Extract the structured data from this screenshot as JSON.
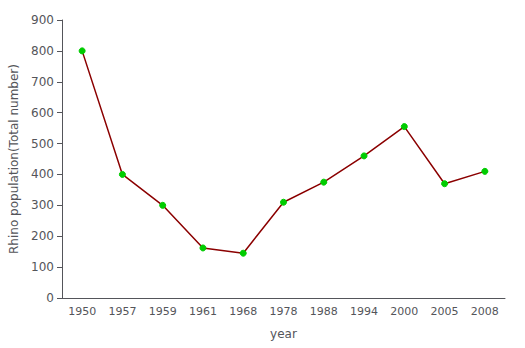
{
  "chart_data": {
    "type": "line",
    "xlabel": "year",
    "ylabel": "Rhino population(Total number)",
    "categories": [
      "1950",
      "1957",
      "1959",
      "1961",
      "1968",
      "1978",
      "1988",
      "1994",
      "2000",
      "2005",
      "2008"
    ],
    "values": [
      800,
      400,
      300,
      162,
      145,
      310,
      375,
      460,
      555,
      370,
      410
    ],
    "color": "#8B0000",
    "colors": [
      "#00CC00",
      "#00CC00",
      "#00CC00",
      "#00CC00",
      "#00CC00",
      "#00CC00",
      "#00CC00",
      "#00CC00",
      "#00CC00",
      "#00CC00",
      "#00CC00"
    ],
    "marker": "circle",
    "ylim": [
      0,
      900
    ],
    "yticks": [
      0,
      100,
      200,
      300,
      400,
      500,
      600,
      700,
      800,
      900
    ],
    "grid": false
  }
}
